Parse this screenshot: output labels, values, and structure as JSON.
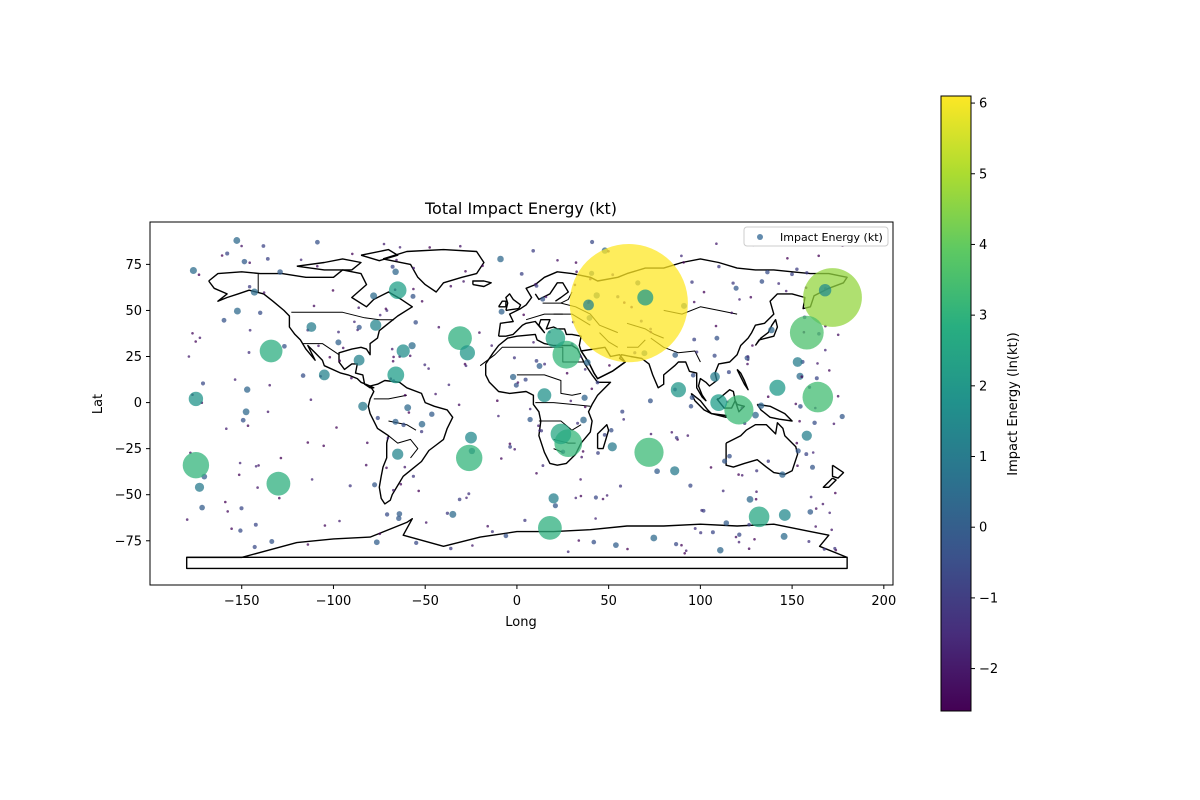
{
  "chart_data": {
    "type": "scatter",
    "title": "Total Impact Energy (kt)",
    "xlabel": "Long",
    "ylabel": "Lat",
    "xlim": [
      -200,
      205
    ],
    "ylim": [
      -99,
      98
    ],
    "xticks": [
      -150,
      -100,
      -50,
      0,
      50,
      100,
      150,
      200
    ],
    "yticks": [
      -75,
      -50,
      -25,
      0,
      25,
      50,
      75
    ],
    "xtick_labels": [
      "−150",
      "−100",
      "−50",
      "0",
      "50",
      "100",
      "150",
      "200"
    ],
    "ytick_labels": [
      "−75",
      "−50",
      "−25",
      "0",
      "25",
      "50",
      "75"
    ],
    "legend": {
      "label": "Impact Energy (kt)",
      "placement": "upper right",
      "marker_color": "#3b6e99"
    },
    "colorbar": {
      "label": "Impact Energy (ln(kt))",
      "range": [
        -2.6,
        6.1
      ],
      "ticks": [
        -2,
        -1,
        0,
        1,
        2,
        3,
        4,
        5,
        6
      ],
      "tick_labels": [
        "−2",
        "−1",
        "0",
        "1",
        "2",
        "3",
        "4",
        "5",
        "6"
      ],
      "colormap": "viridis"
    },
    "marker_alpha": 0.75,
    "size_encoding": "marker size grows with impact energy (kt)",
    "color_encoding": "marker color = ln(impact energy in kt)",
    "basemap": "world coastlines and country borders",
    "highlighted_points": [
      {
        "lon": 61,
        "lat": 54,
        "ln_energy": 6.1
      },
      {
        "lon": 172,
        "lat": 57,
        "ln_energy": 4.7
      },
      {
        "lon": 158,
        "lat": 38,
        "ln_energy": 3.6
      },
      {
        "lon": 164,
        "lat": 3,
        "ln_energy": 3.4
      },
      {
        "lon": 121,
        "lat": -4,
        "ln_energy": 3.3
      },
      {
        "lon": 72,
        "lat": -27,
        "ln_energy": 3.3
      },
      {
        "lon": 28,
        "lat": -22,
        "ln_energy": 3.2
      },
      {
        "lon": 27,
        "lat": 26,
        "ln_energy": 3.2
      },
      {
        "lon": -175,
        "lat": -34,
        "ln_energy": 3.1
      },
      {
        "lon": -26,
        "lat": -30,
        "ln_energy": 3.1
      },
      {
        "lon": -31,
        "lat": 35,
        "ln_energy": 2.9
      },
      {
        "lon": -130,
        "lat": -44,
        "ln_energy": 2.9
      },
      {
        "lon": 18,
        "lat": -68,
        "ln_energy": 2.9
      },
      {
        "lon": -134,
        "lat": 28,
        "ln_energy": 2.8
      },
      {
        "lon": 132,
        "lat": -62,
        "ln_energy": 2.6
      },
      {
        "lon": 24,
        "lat": -17,
        "ln_energy": 2.6
      },
      {
        "lon": 21,
        "lat": 35,
        "ln_energy": 2.5
      },
      {
        "lon": -65,
        "lat": 61,
        "ln_energy": 2.3
      },
      {
        "lon": -66,
        "lat": 15,
        "ln_energy": 2.2
      },
      {
        "lon": 110,
        "lat": 0,
        "ln_energy": 2.2
      },
      {
        "lon": 70,
        "lat": 57,
        "ln_energy": 2.1
      },
      {
        "lon": 142,
        "lat": 8,
        "ln_energy": 2.1
      },
      {
        "lon": -27,
        "lat": 27,
        "ln_energy": 2.0
      },
      {
        "lon": 88,
        "lat": 7,
        "ln_energy": 2.0
      },
      {
        "lon": -175,
        "lat": 2,
        "ln_energy": 1.9
      },
      {
        "lon": 15,
        "lat": 4,
        "ln_energy": 1.8
      },
      {
        "lon": -62,
        "lat": 28,
        "ln_energy": 1.7
      },
      {
        "lon": 168,
        "lat": 61,
        "ln_energy": 1.6
      },
      {
        "lon": 146,
        "lat": -61,
        "ln_energy": 1.5
      },
      {
        "lon": -25,
        "lat": -19,
        "ln_energy": 1.5
      },
      {
        "lon": -77,
        "lat": 42,
        "ln_energy": 1.4
      },
      {
        "lon": -65,
        "lat": -28,
        "ln_energy": 1.4
      },
      {
        "lon": -86,
        "lat": 23,
        "ln_energy": 1.3
      },
      {
        "lon": -105,
        "lat": 15,
        "ln_energy": 1.3
      },
      {
        "lon": 39,
        "lat": 53,
        "ln_energy": 1.3
      },
      {
        "lon": 20,
        "lat": -52,
        "ln_energy": 1.2
      },
      {
        "lon": 158,
        "lat": -18,
        "ln_energy": 1.2
      },
      {
        "lon": 153,
        "lat": 22,
        "ln_energy": 1.1
      },
      {
        "lon": -112,
        "lat": 41,
        "ln_energy": 1.1
      },
      {
        "lon": 108,
        "lat": 14,
        "ln_energy": 1.1
      },
      {
        "lon": -173,
        "lat": -46,
        "ln_energy": 1.0
      },
      {
        "lon": -84,
        "lat": -2,
        "ln_energy": 1.0
      },
      {
        "lon": 86,
        "lat": -37,
        "ln_energy": 1.0
      },
      {
        "lon": 52,
        "lat": -24,
        "ln_energy": 1.0
      }
    ],
    "background_points_note": "about 380 further small markers (ln energy roughly −2.6 to 0.5) spread across all longitudes and latitudes"
  }
}
